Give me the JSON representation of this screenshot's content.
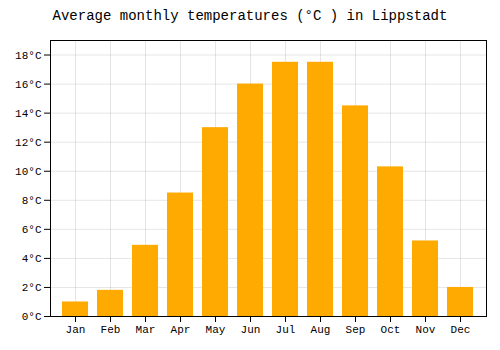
{
  "chart_data": {
    "type": "bar",
    "title": "Average monthly temperatures (°C ) in Lippstadt",
    "categories": [
      "Jan",
      "Feb",
      "Mar",
      "Apr",
      "May",
      "Jun",
      "Jul",
      "Aug",
      "Sep",
      "Oct",
      "Nov",
      "Dec"
    ],
    "values": [
      1.0,
      1.8,
      4.9,
      8.5,
      13.0,
      16.0,
      17.5,
      17.5,
      14.5,
      10.3,
      5.2,
      2.0
    ],
    "color": "#FFAA00",
    "ylim": [
      0,
      19
    ],
    "yticks": [
      {
        "value": 0,
        "label": "0°C"
      },
      {
        "value": 2,
        "label": "2°C"
      },
      {
        "value": 4,
        "label": "4°C"
      },
      {
        "value": 6,
        "label": "6°C"
      },
      {
        "value": 8,
        "label": "8°C"
      },
      {
        "value": 10,
        "label": "10°C"
      },
      {
        "value": 12,
        "label": "12°C"
      },
      {
        "value": 14,
        "label": "14°C"
      },
      {
        "value": 16,
        "label": "16°C"
      },
      {
        "value": 18,
        "label": "18°C"
      }
    ],
    "grid": true
  }
}
